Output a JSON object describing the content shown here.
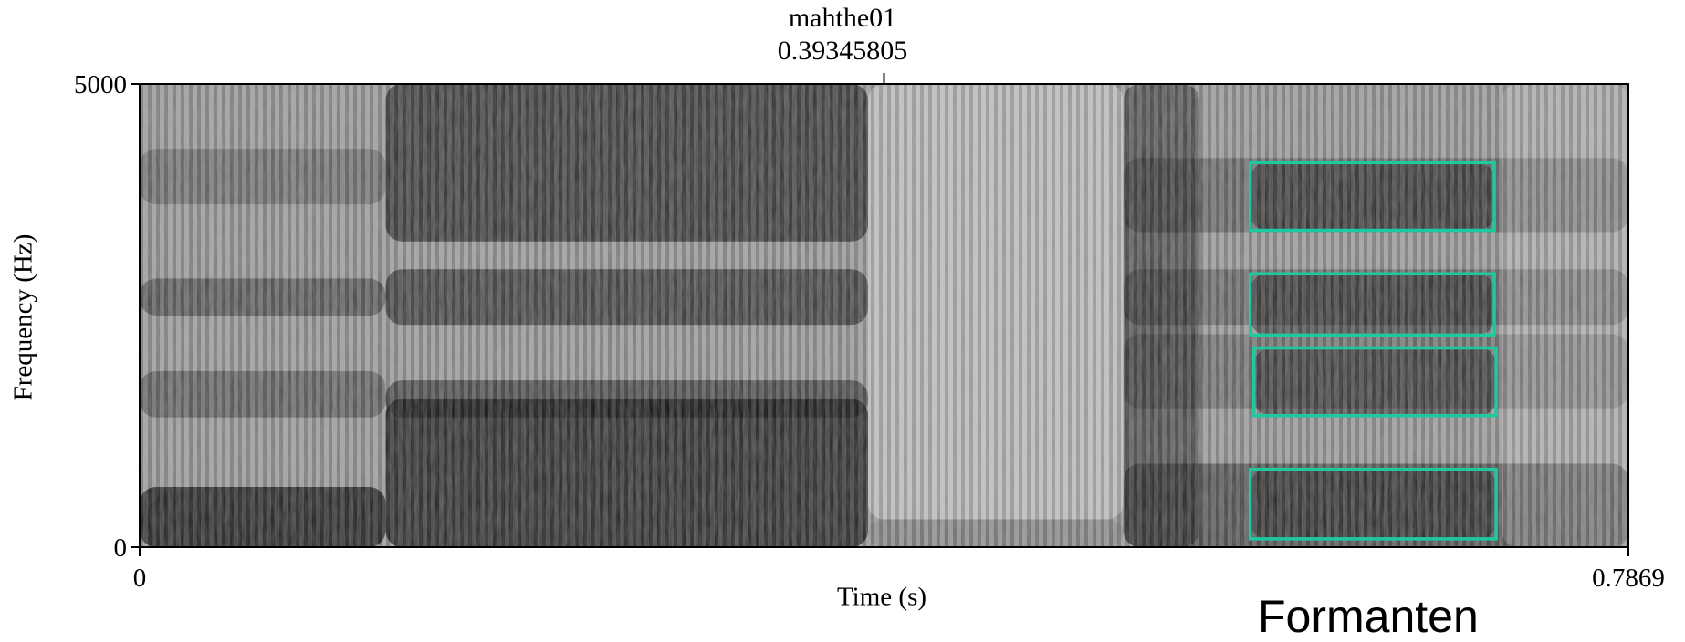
{
  "chart_data": {
    "type": "heatmap",
    "title": "mahthe01",
    "subtitle": "0.39345805",
    "xlabel": "Time (s)",
    "ylabel": "Frequency (Hz)",
    "xlim": [
      0,
      0.7869
    ],
    "ylim": [
      0,
      5000
    ],
    "x_ticks": [
      "0",
      "0.7869"
    ],
    "y_ticks": [
      "0",
      "5000"
    ],
    "cursor_time": 0.39345805,
    "grid": false,
    "colormap": "grayscale",
    "highlight_color": "#1fc9a0",
    "segments": [
      {
        "t_start": 0.0,
        "t_end": 0.13,
        "label": ""
      },
      {
        "t_start": 0.13,
        "t_end": 0.385,
        "label": ""
      },
      {
        "t_start": 0.385,
        "t_end": 0.52,
        "label": ""
      },
      {
        "t_start": 0.52,
        "t_end": 0.7869,
        "label": ""
      }
    ],
    "annotation": "Formanten",
    "formant_boxes": [
      {
        "t_start": 0.587,
        "t_end": 0.716,
        "f_low": 4150,
        "f_high": 3420
      },
      {
        "t_start": 0.587,
        "t_end": 0.716,
        "f_low": 2950,
        "f_high": 2290
      },
      {
        "t_start": 0.589,
        "t_end": 0.717,
        "f_low": 2150,
        "f_high": 1420
      },
      {
        "t_start": 0.587,
        "t_end": 0.717,
        "f_low": 840,
        "f_high": 90
      }
    ]
  }
}
